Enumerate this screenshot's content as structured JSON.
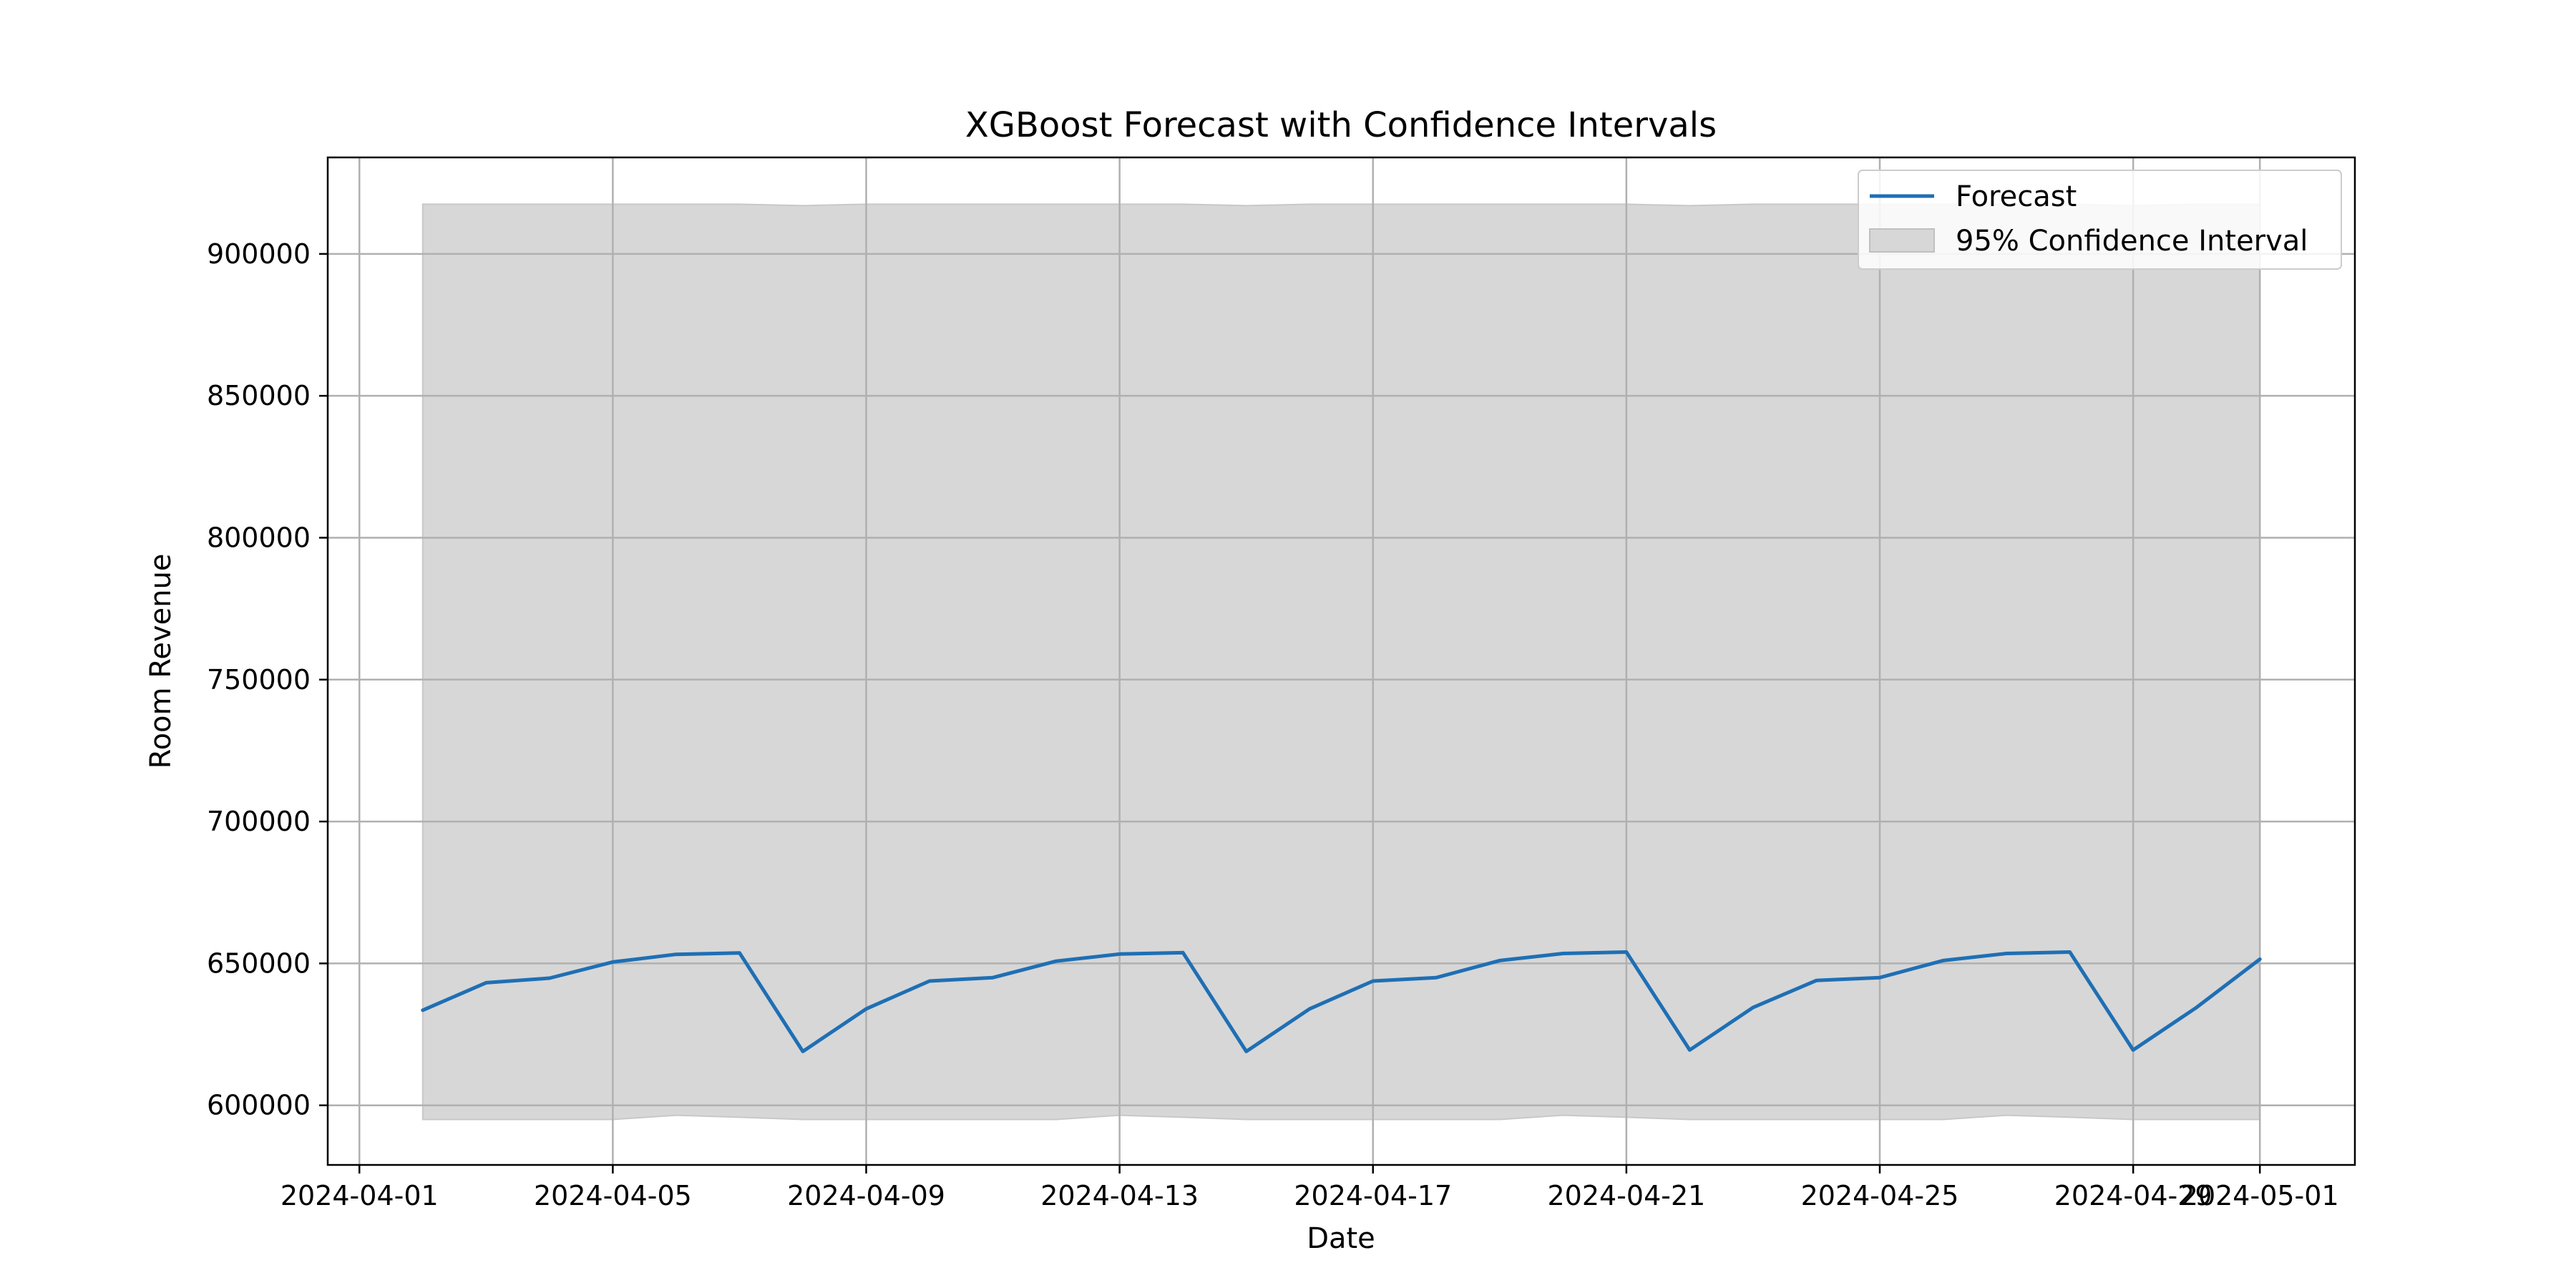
{
  "chart_data": {
    "type": "line",
    "title": "XGBoost Forecast with Confidence Intervals",
    "xlabel": "Date",
    "ylabel": "Room Revenue",
    "x_axis_type": "date",
    "xlim": [
      "2024-03-31T12:00",
      "2024-05-02T12:00"
    ],
    "ylim": [
      579000,
      934000
    ],
    "x_ticks": [
      "2024-04-01",
      "2024-04-05",
      "2024-04-09",
      "2024-04-13",
      "2024-04-17",
      "2024-04-21",
      "2024-04-25",
      "2024-04-29",
      "2024-05-01"
    ],
    "y_ticks": [
      600000,
      650000,
      700000,
      750000,
      800000,
      850000,
      900000
    ],
    "grid": true,
    "legend_position": "top-right",
    "legend": [
      "Forecast",
      "95% Confidence Interval"
    ],
    "colors": {
      "forecast": "#1f6fb4",
      "interval": "#d7d7d7",
      "grid": "#b0b0b0"
    },
    "x": [
      "2024-04-02",
      "2024-04-03",
      "2024-04-04",
      "2024-04-05",
      "2024-04-06",
      "2024-04-07",
      "2024-04-08",
      "2024-04-09",
      "2024-04-10",
      "2024-04-11",
      "2024-04-12",
      "2024-04-13",
      "2024-04-14",
      "2024-04-15",
      "2024-04-16",
      "2024-04-17",
      "2024-04-18",
      "2024-04-19",
      "2024-04-20",
      "2024-04-21",
      "2024-04-22",
      "2024-04-23",
      "2024-04-24",
      "2024-04-25",
      "2024-04-26",
      "2024-04-27",
      "2024-04-28",
      "2024-04-29",
      "2024-04-30",
      "2024-05-01"
    ],
    "series": [
      {
        "name": "Forecast",
        "values": [
          633500,
          643200,
          644800,
          650500,
          653200,
          653700,
          619000,
          634000,
          643800,
          645000,
          650800,
          653300,
          653800,
          619000,
          634000,
          643800,
          645000,
          651000,
          653500,
          654000,
          619500,
          634500,
          644000,
          645000,
          651000,
          653500,
          654000,
          619500,
          634500,
          651500
        ]
      }
    ],
    "interval": {
      "name": "95% Confidence Interval",
      "upper": [
        917500,
        917500,
        917500,
        917500,
        917500,
        917500,
        917000,
        917500,
        917500,
        917500,
        917500,
        917500,
        917500,
        917000,
        917500,
        917500,
        917500,
        917500,
        917500,
        917500,
        917000,
        917500,
        917500,
        917500,
        917500,
        917500,
        917500,
        917000,
        917500,
        917500
      ],
      "lower": [
        595000,
        595000,
        595000,
        595000,
        596500,
        595800,
        595000,
        595000,
        595000,
        595000,
        595000,
        596500,
        595800,
        595000,
        595000,
        595000,
        595000,
        595000,
        596500,
        595800,
        595000,
        595000,
        595000,
        595000,
        595000,
        596500,
        595800,
        595000,
        595000,
        595000
      ]
    }
  }
}
